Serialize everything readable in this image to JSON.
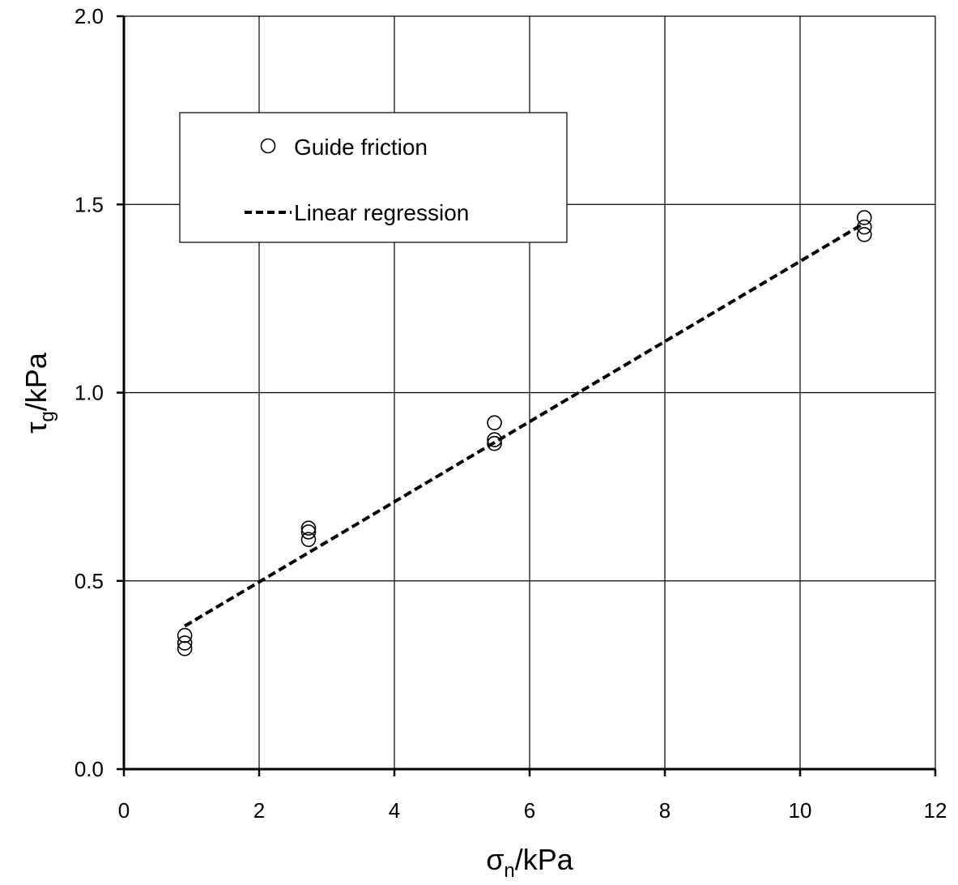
{
  "chart_data": {
    "type": "scatter",
    "title": "",
    "xlabel": "σn/kPa",
    "xlabel_main": "σ",
    "xlabel_sub": "n",
    "xlabel_unit": "/kPa",
    "ylabel": "τg/kPa",
    "ylabel_main": "τ",
    "ylabel_sub": "g",
    "ylabel_unit": "/kPa",
    "xlim": [
      0,
      12
    ],
    "ylim": [
      0,
      2
    ],
    "xticks": [
      "0",
      "2",
      "4",
      "6",
      "8",
      "10",
      "12"
    ],
    "yticks": [
      "0.0",
      "0.5",
      "1.0",
      "1.5",
      "2.0"
    ],
    "grid": true,
    "legend_position": "upper-left",
    "series": [
      {
        "name": "Guide friction",
        "marker": "open-circle",
        "color": "#000000",
        "points": [
          {
            "x": 0.9,
            "y": 0.355
          },
          {
            "x": 0.9,
            "y": 0.335
          },
          {
            "x": 0.9,
            "y": 0.32
          },
          {
            "x": 2.73,
            "y": 0.64
          },
          {
            "x": 2.73,
            "y": 0.63
          },
          {
            "x": 2.73,
            "y": 0.61
          },
          {
            "x": 5.48,
            "y": 0.92
          },
          {
            "x": 5.48,
            "y": 0.875
          },
          {
            "x": 5.48,
            "y": 0.865
          },
          {
            "x": 10.95,
            "y": 1.465
          },
          {
            "x": 10.95,
            "y": 1.44
          },
          {
            "x": 10.95,
            "y": 1.42
          }
        ]
      },
      {
        "name": "Linear regression",
        "style": "dashed",
        "color": "#000000",
        "points": [
          {
            "x": 0.9,
            "y": 0.38
          },
          {
            "x": 10.95,
            "y": 1.45
          }
        ]
      }
    ]
  }
}
